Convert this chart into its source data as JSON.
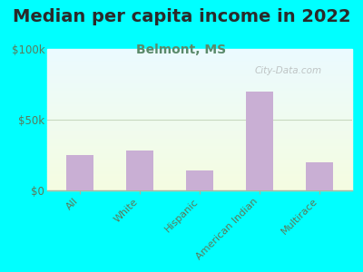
{
  "title": "Median per capita income in 2022",
  "subtitle": "Belmont, MS",
  "categories": [
    "All",
    "White",
    "Hispanic",
    "American Indian",
    "Multirace"
  ],
  "values": [
    25000,
    28000,
    14000,
    70000,
    20000
  ],
  "bar_color": "#c9afd4",
  "background_color": "#00ffff",
  "title_color": "#2a2a2a",
  "subtitle_color": "#5a8a6a",
  "tick_color": "#5a7a5a",
  "ylim": [
    0,
    100000
  ],
  "yticks": [
    0,
    50000,
    100000
  ],
  "ytick_labels": [
    "$0",
    "$50k",
    "$100k"
  ],
  "watermark": "City-Data.com",
  "figsize": [
    4.0,
    3.0
  ],
  "dpi": 100,
  "title_fontsize": 14,
  "subtitle_fontsize": 10
}
